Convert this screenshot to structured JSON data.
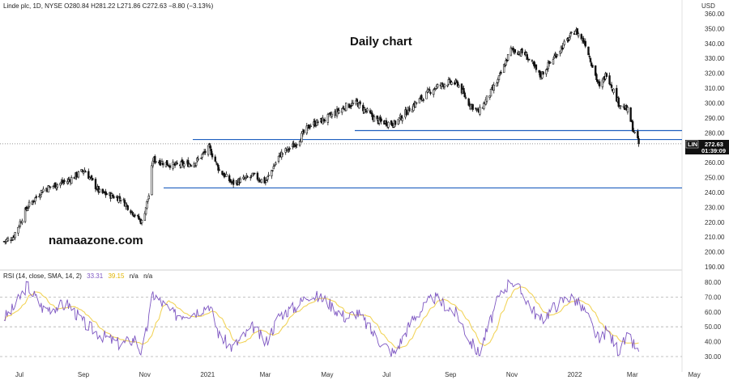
{
  "colors": {
    "candle": "#111111",
    "level_line": "#1f5fbf",
    "rsi_line": "#7e57c2",
    "rsi_ma": "#f2d45a",
    "badge_bg": "#111111",
    "badge_text": "#ffffff",
    "grid_dash": "#b0b0b0"
  },
  "header": {
    "info_text": "Linde plc, 1D, NYSE  O280.84  H281.22  L271.86  C272.63  −8.80 (−3.13%)",
    "currency": "USD"
  },
  "title": "Daily chart",
  "watermark": "namaazone.com",
  "price_badge": {
    "ticker": "LIN",
    "price": "272.63",
    "countdown": "01:39:09"
  },
  "rsi_legend": {
    "label": "RSI (14, close, SMA, 14, 2)",
    "rsi_value": "33.31",
    "ma_value": "39.15",
    "na1": "n/a",
    "na2": "n/a"
  },
  "chart_data": [
    {
      "type": "candlestick",
      "series_name": "Linde plc, 1D, NYSE",
      "ylim": [
        190,
        360
      ],
      "y_ticks": [
        "360.00",
        "350.00",
        "340.00",
        "330.00",
        "320.00",
        "310.00",
        "300.00",
        "290.00",
        "280.00",
        "270.00",
        "260.00",
        "250.00",
        "240.00",
        "230.00",
        "220.00",
        "210.00",
        "200.00",
        "190.00"
      ],
      "x_ticks": [
        "Jul",
        "Sep",
        "Nov",
        "2021",
        "Mar",
        "May",
        "Jul",
        "Sep",
        "Nov",
        "2022",
        "Mar",
        "May"
      ],
      "last_close": 272.63,
      "horizontal_levels": [
        281.5,
        275.5,
        243
      ],
      "close_path": [
        {
          "x": "2020-06-15",
          "y": 207
        },
        {
          "x": "2020-06-24",
          "y": 210
        },
        {
          "x": "2020-07-08",
          "y": 230
        },
        {
          "x": "2020-07-24",
          "y": 242
        },
        {
          "x": "2020-08-18",
          "y": 248
        },
        {
          "x": "2020-09-03",
          "y": 255
        },
        {
          "x": "2020-09-18",
          "y": 240
        },
        {
          "x": "2020-10-09",
          "y": 236
        },
        {
          "x": "2020-10-23",
          "y": 225
        },
        {
          "x": "2020-10-30",
          "y": 220
        },
        {
          "x": "2020-11-06",
          "y": 238
        },
        {
          "x": "2020-11-10",
          "y": 262
        },
        {
          "x": "2020-12-01",
          "y": 258
        },
        {
          "x": "2020-12-22",
          "y": 260
        },
        {
          "x": "2021-01-05",
          "y": 270
        },
        {
          "x": "2021-01-15",
          "y": 255
        },
        {
          "x": "2021-01-28",
          "y": 246
        },
        {
          "x": "2021-02-18",
          "y": 251
        },
        {
          "x": "2021-03-02",
          "y": 247
        },
        {
          "x": "2021-03-16",
          "y": 265
        },
        {
          "x": "2021-03-31",
          "y": 272
        },
        {
          "x": "2021-04-15",
          "y": 285
        },
        {
          "x": "2021-04-30",
          "y": 289
        },
        {
          "x": "2021-05-21",
          "y": 298
        },
        {
          "x": "2021-06-01",
          "y": 300
        },
        {
          "x": "2021-06-21",
          "y": 288
        },
        {
          "x": "2021-07-08",
          "y": 286
        },
        {
          "x": "2021-07-26",
          "y": 298
        },
        {
          "x": "2021-08-16",
          "y": 310
        },
        {
          "x": "2021-08-31",
          "y": 314
        },
        {
          "x": "2021-09-09",
          "y": 313
        },
        {
          "x": "2021-09-20",
          "y": 300
        },
        {
          "x": "2021-09-30",
          "y": 294
        },
        {
          "x": "2021-10-19",
          "y": 315
        },
        {
          "x": "2021-11-01",
          "y": 336
        },
        {
          "x": "2021-11-15",
          "y": 333
        },
        {
          "x": "2021-11-30",
          "y": 318
        },
        {
          "x": "2021-12-15",
          "y": 332
        },
        {
          "x": "2021-12-28",
          "y": 343
        },
        {
          "x": "2022-01-04",
          "y": 349
        },
        {
          "x": "2022-01-14",
          "y": 340
        },
        {
          "x": "2022-01-28",
          "y": 310
        },
        {
          "x": "2022-02-04",
          "y": 320
        },
        {
          "x": "2022-02-16",
          "y": 300
        },
        {
          "x": "2022-02-25",
          "y": 295
        },
        {
          "x": "2022-03-03",
          "y": 281
        },
        {
          "x": "2022-03-08",
          "y": 272.63
        }
      ]
    },
    {
      "type": "line",
      "series_name": "RSI (14, close, SMA, 14, 2)",
      "ylim": [
        20,
        85
      ],
      "y_ticks": [
        "80.00",
        "70.00",
        "60.00",
        "50.00",
        "40.00",
        "30.00"
      ],
      "reference_levels": [
        70,
        50,
        30
      ],
      "rsi_path": [
        {
          "x": "2020-06-15",
          "y": 56
        },
        {
          "x": "2020-06-24",
          "y": 62
        },
        {
          "x": "2020-07-08",
          "y": 78
        },
        {
          "x": "2020-07-24",
          "y": 62
        },
        {
          "x": "2020-08-18",
          "y": 65
        },
        {
          "x": "2020-09-03",
          "y": 52
        },
        {
          "x": "2020-09-18",
          "y": 45
        },
        {
          "x": "2020-10-09",
          "y": 38
        },
        {
          "x": "2020-10-23",
          "y": 42
        },
        {
          "x": "2020-10-30",
          "y": 32
        },
        {
          "x": "2020-11-06",
          "y": 56
        },
        {
          "x": "2020-11-10",
          "y": 72
        },
        {
          "x": "2020-12-01",
          "y": 58
        },
        {
          "x": "2020-12-22",
          "y": 60
        },
        {
          "x": "2021-01-05",
          "y": 65
        },
        {
          "x": "2021-01-15",
          "y": 44
        },
        {
          "x": "2021-01-28",
          "y": 36
        },
        {
          "x": "2021-02-18",
          "y": 50
        },
        {
          "x": "2021-03-02",
          "y": 39
        },
        {
          "x": "2021-03-16",
          "y": 58
        },
        {
          "x": "2021-03-31",
          "y": 63
        },
        {
          "x": "2021-04-15",
          "y": 72
        },
        {
          "x": "2021-04-30",
          "y": 68
        },
        {
          "x": "2021-05-21",
          "y": 56
        },
        {
          "x": "2021-06-01",
          "y": 60
        },
        {
          "x": "2021-06-21",
          "y": 42
        },
        {
          "x": "2021-07-08",
          "y": 32
        },
        {
          "x": "2021-07-26",
          "y": 55
        },
        {
          "x": "2021-08-16",
          "y": 70
        },
        {
          "x": "2021-08-31",
          "y": 63
        },
        {
          "x": "2021-09-09",
          "y": 58
        },
        {
          "x": "2021-09-20",
          "y": 42
        },
        {
          "x": "2021-09-30",
          "y": 32
        },
        {
          "x": "2021-10-19",
          "y": 68
        },
        {
          "x": "2021-11-01",
          "y": 82
        },
        {
          "x": "2021-11-15",
          "y": 70
        },
        {
          "x": "2021-11-30",
          "y": 54
        },
        {
          "x": "2021-12-15",
          "y": 64
        },
        {
          "x": "2021-12-28",
          "y": 70
        },
        {
          "x": "2022-01-04",
          "y": 68
        },
        {
          "x": "2022-01-14",
          "y": 60
        },
        {
          "x": "2022-01-28",
          "y": 40
        },
        {
          "x": "2022-02-04",
          "y": 48
        },
        {
          "x": "2022-02-16",
          "y": 34
        },
        {
          "x": "2022-02-25",
          "y": 43
        },
        {
          "x": "2022-03-03",
          "y": 38
        },
        {
          "x": "2022-03-08",
          "y": 33.31
        }
      ]
    }
  ]
}
